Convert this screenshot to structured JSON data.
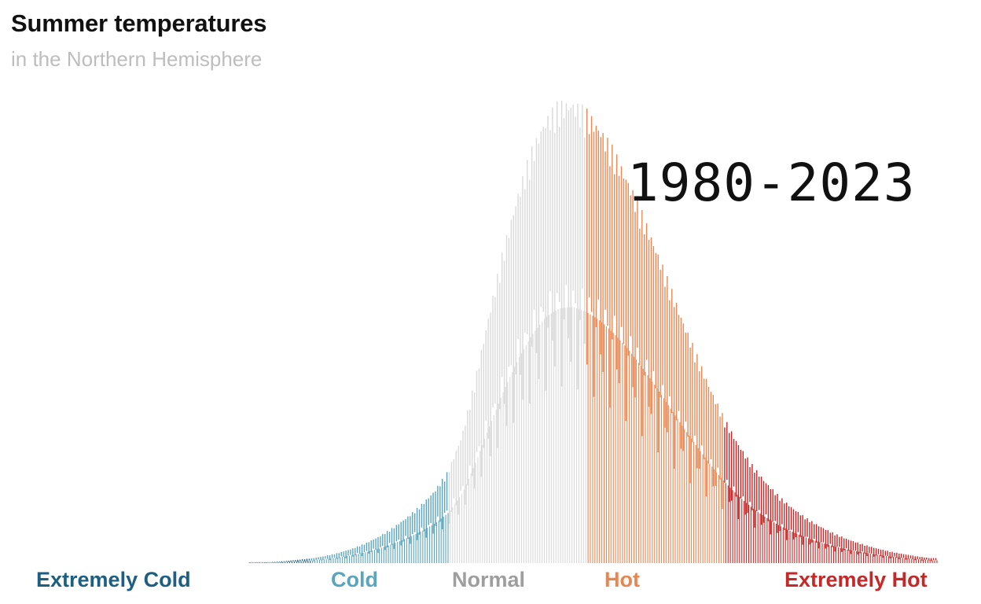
{
  "title": "Summer temperatures",
  "subtitle": "in the Northern Hemisphere",
  "period_label": "1980-2023",
  "colors": {
    "extremely_cold": "#1d5f83",
    "cold": "#5aa5bd",
    "normal": "#d9d9d9",
    "hot": "#e88a56",
    "extremely_hot": "#c62828",
    "normal_label": "#9e9e9e",
    "hot_label": "#e8864f"
  },
  "chart_data": {
    "type": "area",
    "title": "Summer temperatures",
    "subtitle": "in the Northern Hemisphere",
    "xlabel": "",
    "ylabel": "",
    "grid": false,
    "categories": [
      "Extremely Cold",
      "Cold",
      "Normal",
      "Hot",
      "Extremely Hot"
    ],
    "bins": [
      -3.8,
      -3.6,
      -3.4,
      -3.2,
      -3.0,
      -2.8,
      -2.6,
      -2.4,
      -2.2,
      -2.0,
      -1.8,
      -1.6,
      -1.4,
      -1.2,
      -1.0,
      -0.8,
      -0.6,
      -0.4,
      -0.2,
      0.0,
      0.2,
      0.4,
      0.6,
      0.8,
      1.0,
      1.2,
      1.4,
      1.6,
      1.8,
      2.0,
      2.2,
      2.4,
      2.6,
      2.8,
      3.0,
      3.2,
      3.4,
      3.6,
      3.8,
      4.0,
      4.2,
      4.4,
      4.6,
      4.8,
      5.0,
      5.2,
      5.4,
      5.6,
      5.8,
      6.0
    ],
    "values": [
      0.2,
      0.2,
      0.4,
      0.7,
      1.0,
      1.5,
      2.2,
      3.1,
      4.3,
      5.8,
      7.7,
      9.9,
      12.5,
      15.6,
      19.9,
      27.7,
      40.2,
      54.5,
      67.8,
      79.5,
      89.0,
      96.0,
      99.5,
      100.0,
      98.0,
      94.5,
      89.5,
      83.5,
      76.5,
      69.0,
      61.0,
      53.0,
      45.5,
      38.2,
      31.7,
      26.2,
      21.6,
      17.8,
      14.6,
      12.0,
      9.8,
      8.0,
      6.5,
      5.2,
      4.2,
      3.3,
      2.6,
      2.0,
      1.5,
      1.1
    ],
    "category_ranges": {
      "Extremely Cold": [
        -3.9,
        -3.0
      ],
      "Cold": [
        -3.0,
        -1.0
      ],
      "Normal": [
        -1.0,
        1.0
      ],
      "Hot": [
        1.0,
        3.0
      ],
      "Extremely Hot": [
        3.0,
        6.1
      ]
    },
    "annotations": [
      "1980-2023"
    ]
  }
}
